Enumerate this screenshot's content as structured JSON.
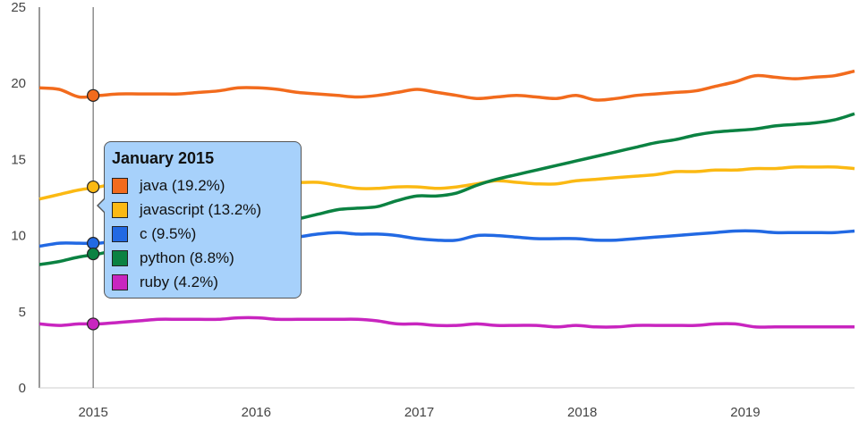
{
  "chart_data": {
    "type": "line",
    "x_start": 2014.67,
    "x_end": 2019.67,
    "ylim": [
      0,
      25
    ],
    "y_ticks": [
      0,
      5,
      10,
      15,
      20,
      25
    ],
    "x_ticks": [
      2015,
      2016,
      2017,
      2018,
      2019
    ],
    "grid": false,
    "series": [
      {
        "name": "java",
        "color": "#f26b1d",
        "values": [
          19.7,
          19.6,
          19.1,
          19.2,
          19.3,
          19.3,
          19.3,
          19.3,
          19.4,
          19.5,
          19.7,
          19.7,
          19.6,
          19.4,
          19.3,
          19.2,
          19.1,
          19.2,
          19.4,
          19.6,
          19.4,
          19.2,
          19.0,
          19.1,
          19.2,
          19.1,
          19.0,
          19.2,
          18.9,
          19.0,
          19.2,
          19.3,
          19.4,
          19.5,
          19.8,
          20.1,
          20.5,
          20.4,
          20.3,
          20.4,
          20.5,
          20.8
        ]
      },
      {
        "name": "javascript",
        "color": "#fbb913",
        "values": [
          12.4,
          12.7,
          13.0,
          13.2,
          13.5,
          13.8,
          13.9,
          14.0,
          14.0,
          14.0,
          14.0,
          13.8,
          13.7,
          13.5,
          13.5,
          13.3,
          13.1,
          13.1,
          13.2,
          13.2,
          13.1,
          13.2,
          13.4,
          13.6,
          13.5,
          13.4,
          13.4,
          13.6,
          13.7,
          13.8,
          13.9,
          14.0,
          14.2,
          14.2,
          14.3,
          14.3,
          14.4,
          14.4,
          14.5,
          14.5,
          14.5,
          14.4
        ]
      },
      {
        "name": "c",
        "color": "#2269e3",
        "values": [
          9.3,
          9.5,
          9.5,
          9.5,
          9.7,
          9.8,
          9.9,
          10.0,
          10.0,
          9.9,
          9.7,
          9.6,
          9.7,
          9.9,
          10.1,
          10.2,
          10.1,
          10.1,
          10.0,
          9.8,
          9.7,
          9.7,
          10.0,
          10.0,
          9.9,
          9.8,
          9.8,
          9.8,
          9.7,
          9.7,
          9.8,
          9.9,
          10.0,
          10.1,
          10.2,
          10.3,
          10.3,
          10.2,
          10.2,
          10.2,
          10.2,
          10.3
        ]
      },
      {
        "name": "python",
        "color": "#0b8242",
        "values": [
          8.1,
          8.3,
          8.6,
          8.8,
          9.1,
          9.3,
          9.6,
          9.8,
          10.1,
          10.4,
          10.7,
          10.9,
          10.9,
          11.1,
          11.4,
          11.7,
          11.8,
          11.9,
          12.3,
          12.6,
          12.6,
          12.8,
          13.3,
          13.7,
          14.0,
          14.3,
          14.6,
          14.9,
          15.2,
          15.5,
          15.8,
          16.1,
          16.3,
          16.6,
          16.8,
          16.9,
          17.0,
          17.2,
          17.3,
          17.4,
          17.6,
          18.0
        ]
      },
      {
        "name": "ruby",
        "color": "#c825bf",
        "values": [
          4.2,
          4.1,
          4.2,
          4.2,
          4.3,
          4.4,
          4.5,
          4.5,
          4.5,
          4.5,
          4.6,
          4.6,
          4.5,
          4.5,
          4.5,
          4.5,
          4.5,
          4.4,
          4.2,
          4.2,
          4.1,
          4.1,
          4.2,
          4.1,
          4.1,
          4.1,
          4.0,
          4.1,
          4.0,
          4.0,
          4.1,
          4.1,
          4.1,
          4.1,
          4.2,
          4.2,
          4.0,
          4.0,
          4.0,
          4.0,
          4.0,
          4.0
        ]
      }
    ],
    "cursor": {
      "x": 2015,
      "title": "January 2015",
      "items": [
        {
          "label": "java (19.2%)",
          "value": 19.2,
          "color": "#f26b1d"
        },
        {
          "label": "javascript (13.2%)",
          "value": 13.2,
          "color": "#fbb913"
        },
        {
          "label": "c (9.5%)",
          "value": 9.5,
          "color": "#2269e3"
        },
        {
          "label": "python (8.8%)",
          "value": 8.8,
          "color": "#0b8242"
        },
        {
          "label": "ruby (4.2%)",
          "value": 4.2,
          "color": "#c825bf"
        }
      ]
    }
  }
}
